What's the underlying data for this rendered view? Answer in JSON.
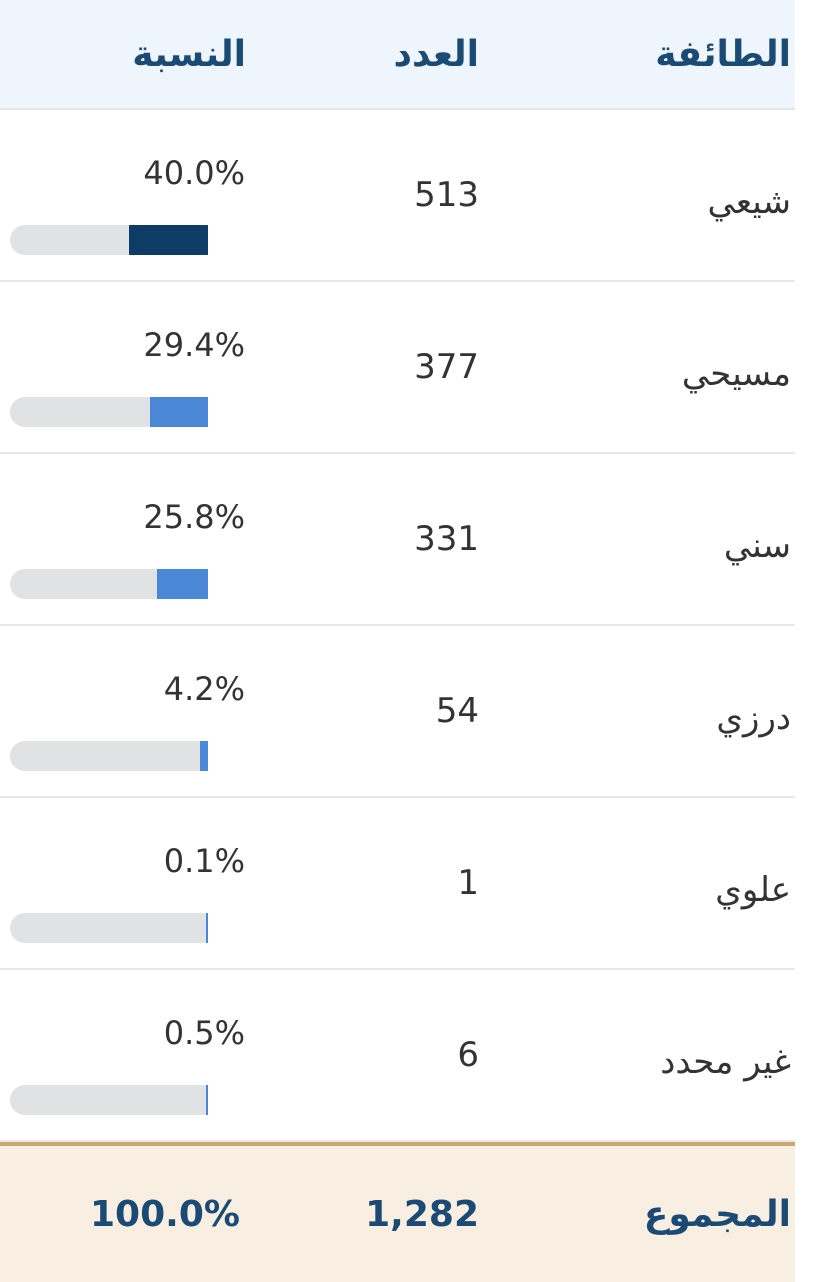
{
  "header": {
    "sect": "الطائفة",
    "count": "العدد",
    "pct": "النسبة"
  },
  "rows": [
    {
      "sect": "شيعي",
      "count": "513",
      "pct": "40.0%",
      "value": 40.0,
      "color": "#0d3d66"
    },
    {
      "sect": "مسيحي",
      "count": "377",
      "pct": "29.4%",
      "value": 29.4,
      "color": "#4a87d6"
    },
    {
      "sect": "سني",
      "count": "331",
      "pct": "25.8%",
      "value": 25.8,
      "color": "#4a87d6"
    },
    {
      "sect": "درزي",
      "count": "54",
      "pct": "4.2%",
      "value": 4.2,
      "color": "#4a87d6"
    },
    {
      "sect": "علوي",
      "count": "1",
      "pct": "0.1%",
      "value": 0.1,
      "color": "#4a87d6"
    },
    {
      "sect": "غير محدد",
      "count": "6",
      "pct": "0.5%",
      "value": 0.5,
      "color": "#4a87d6"
    }
  ],
  "footer": {
    "label": "المجموع",
    "count": "1,282",
    "pct": "100.0%"
  }
}
